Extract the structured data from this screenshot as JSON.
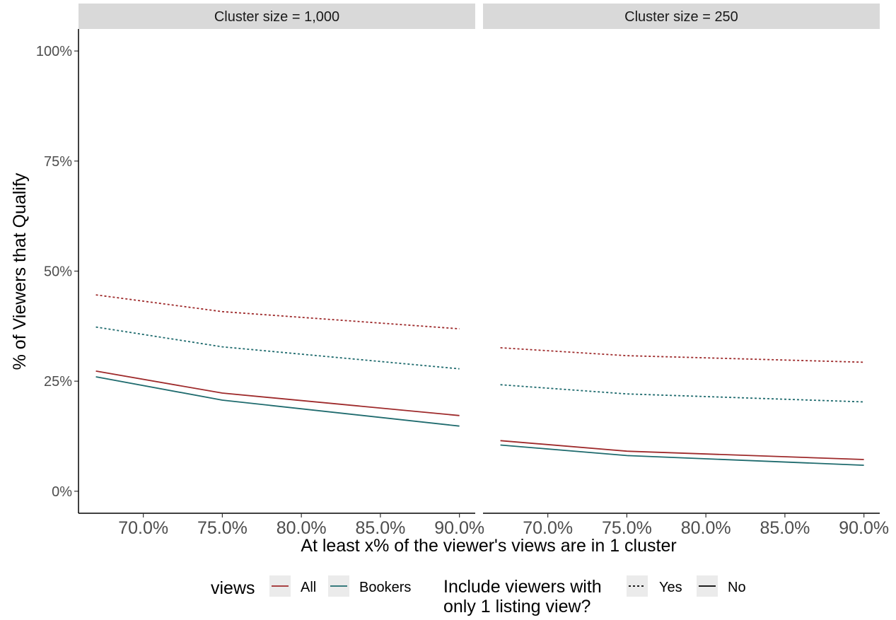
{
  "chart_data": {
    "type": "line",
    "ylabel": "% of Viewers that Qualify",
    "xlabel": "At least x% of the viewer's views are in 1 cluster",
    "x_tick_labels": [
      "70.0%",
      "75.0%",
      "80.0%",
      "85.0%",
      "90.0%"
    ],
    "x_ticks": [
      70,
      75,
      80,
      85,
      90
    ],
    "y_tick_labels": [
      "0%",
      "25%",
      "50%",
      "75%",
      "100%"
    ],
    "y_ticks": [
      0,
      25,
      50,
      75,
      100
    ],
    "xlim": [
      65.9,
      91.0
    ],
    "ylim": [
      -5,
      105
    ],
    "grid": false,
    "legend_position": "bottom",
    "panels": [
      {
        "strip": "Cluster size = 1,000",
        "series": [
          {
            "views": "All",
            "include_single": "Yes",
            "x": [
              67,
              75,
              90
            ],
            "y": [
              44.6,
              40.8,
              36.9
            ]
          },
          {
            "views": "Bookers",
            "include_single": "Yes",
            "x": [
              67,
              75,
              90
            ],
            "y": [
              37.3,
              32.8,
              27.8
            ]
          },
          {
            "views": "All",
            "include_single": "No",
            "x": [
              67,
              75,
              90
            ],
            "y": [
              27.3,
              22.3,
              17.2
            ]
          },
          {
            "views": "Bookers",
            "include_single": "No",
            "x": [
              67,
              75,
              90
            ],
            "y": [
              26.0,
              20.7,
              14.8
            ]
          }
        ]
      },
      {
        "strip": "Cluster size = 250",
        "series": [
          {
            "views": "All",
            "include_single": "Yes",
            "x": [
              67,
              75,
              90
            ],
            "y": [
              32.6,
              30.8,
              29.3
            ]
          },
          {
            "views": "Bookers",
            "include_single": "Yes",
            "x": [
              67,
              75,
              90
            ],
            "y": [
              24.2,
              22.1,
              20.3
            ]
          },
          {
            "views": "All",
            "include_single": "No",
            "x": [
              67,
              75,
              90
            ],
            "y": [
              11.5,
              9.1,
              7.2
            ]
          },
          {
            "views": "Bookers",
            "include_single": "No",
            "x": [
              67,
              75,
              90
            ],
            "y": [
              10.5,
              8.1,
              5.9
            ]
          }
        ]
      }
    ],
    "legend": {
      "color_title": "views",
      "color_entries": [
        {
          "label": "All",
          "color": "#9e2a2b"
        },
        {
          "label": "Bookers",
          "color": "#1f6b6e"
        }
      ],
      "linetype_title": "Include viewers with only 1 listing view?",
      "linetype_title_lines": [
        "Include viewers with",
        "only 1 listing view?"
      ],
      "linetype_entries": [
        {
          "label": "Yes",
          "linetype": "dotted"
        },
        {
          "label": "No",
          "linetype": "solid"
        }
      ]
    }
  }
}
